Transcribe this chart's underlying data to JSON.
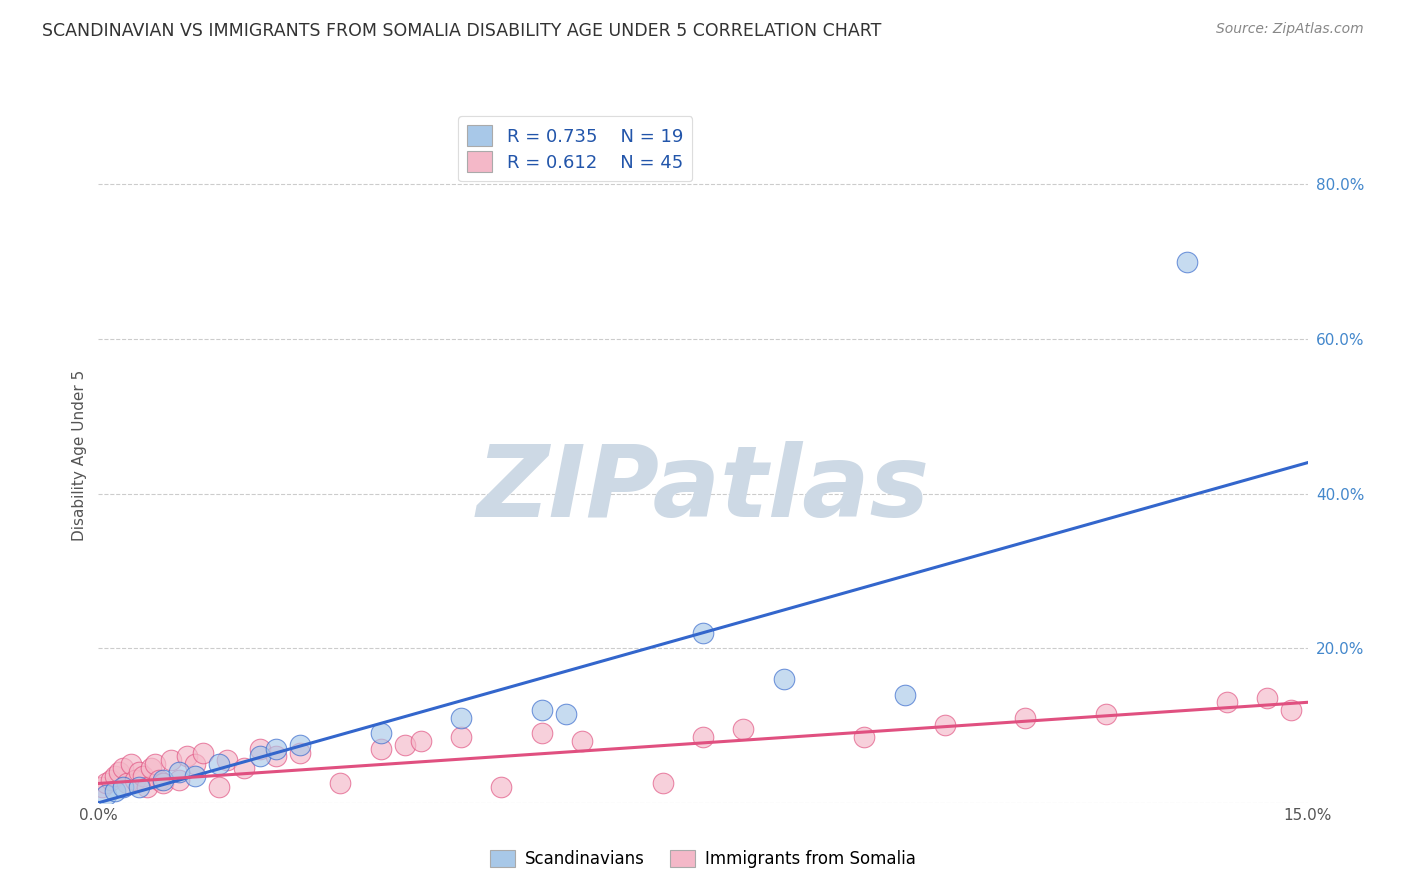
{
  "title": "SCANDINAVIAN VS IMMIGRANTS FROM SOMALIA DISABILITY AGE UNDER 5 CORRELATION CHART",
  "source": "Source: ZipAtlas.com",
  "ylabel": "Disability Age Under 5",
  "xlim": [
    0.0,
    15.0
  ],
  "ylim": [
    0.0,
    90.0
  ],
  "background_color": "#ffffff",
  "watermark_text": "ZIPatlas",
  "watermark_color": "#cdd9e5",
  "blue_color": "#a8c8e8",
  "pink_color": "#f4b8c8",
  "blue_line_color": "#3366cc",
  "pink_line_color": "#e05080",
  "legend_blue_R": "0.735",
  "legend_blue_N": "19",
  "legend_pink_R": "0.612",
  "legend_pink_N": "45",
  "bottom_legend_blue": "Scandinavians",
  "bottom_legend_pink": "Immigrants from Somalia",
  "scandinavians_x": [
    0.1,
    0.2,
    0.3,
    0.5,
    0.8,
    1.0,
    1.2,
    1.5,
    2.0,
    2.2,
    2.5,
    3.5,
    4.5,
    5.5,
    5.8,
    7.5,
    8.5,
    10.0,
    13.5
  ],
  "scandinavians_y": [
    1.0,
    1.5,
    2.0,
    2.0,
    3.0,
    4.0,
    3.5,
    5.0,
    6.0,
    7.0,
    7.5,
    9.0,
    11.0,
    12.0,
    11.5,
    22.0,
    16.0,
    14.0,
    70.0
  ],
  "somalia_x": [
    0.05,
    0.1,
    0.15,
    0.2,
    0.25,
    0.3,
    0.35,
    0.4,
    0.45,
    0.5,
    0.55,
    0.6,
    0.65,
    0.7,
    0.75,
    0.8,
    0.9,
    1.0,
    1.1,
    1.2,
    1.3,
    1.5,
    1.6,
    1.8,
    2.0,
    2.2,
    2.5,
    3.0,
    3.5,
    3.8,
    4.0,
    4.5,
    5.0,
    5.5,
    6.0,
    7.0,
    7.5,
    8.0,
    9.5,
    10.5,
    11.5,
    12.5,
    14.0,
    14.5,
    14.8
  ],
  "somalia_y": [
    2.0,
    2.5,
    3.0,
    3.5,
    4.0,
    4.5,
    2.5,
    5.0,
    3.0,
    4.0,
    3.5,
    2.0,
    4.5,
    5.0,
    3.0,
    2.5,
    5.5,
    3.0,
    6.0,
    5.0,
    6.5,
    2.0,
    5.5,
    4.5,
    7.0,
    6.0,
    6.5,
    2.5,
    7.0,
    7.5,
    8.0,
    8.5,
    2.0,
    9.0,
    8.0,
    2.5,
    8.5,
    9.5,
    8.5,
    10.0,
    11.0,
    11.5,
    13.0,
    13.5,
    12.0
  ],
  "blue_trendline_x": [
    0.0,
    15.0
  ],
  "blue_trendline_y": [
    0.0,
    44.0
  ],
  "pink_trendline_x": [
    0.0,
    15.0
  ],
  "pink_trendline_y": [
    2.5,
    13.0
  ]
}
